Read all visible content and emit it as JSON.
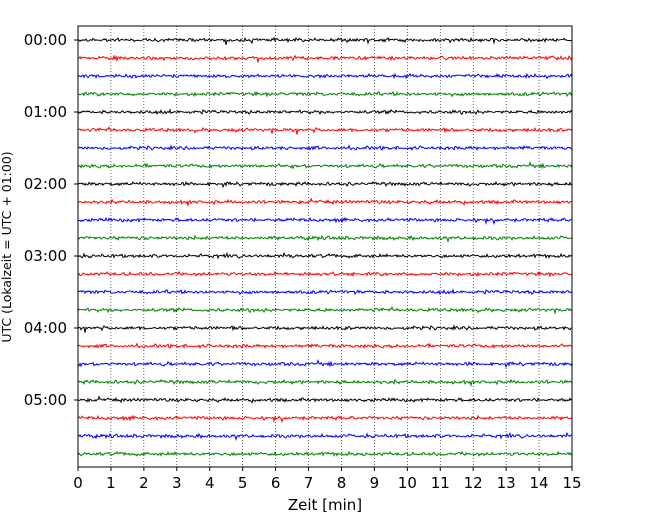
{
  "chart_data": {
    "type": "line",
    "title": "",
    "xlabel": "Zeit  [min]",
    "ylabel": "UTC (Lokalzeit = UTC + 01:00)",
    "xlim": [
      0,
      15
    ],
    "x_ticks": [
      "0",
      "1",
      "2",
      "3",
      "4",
      "5",
      "6",
      "7",
      "8",
      "9",
      "10",
      "11",
      "12",
      "13",
      "14",
      "15"
    ],
    "y_tick_labels": [
      "00:00",
      "01:00",
      "02:00",
      "03:00",
      "04:00",
      "05:00"
    ],
    "grid": "vertical dotted at each minute",
    "trace_colors": [
      "#000000",
      "#ff0000",
      "#0000ff",
      "#008000"
    ],
    "traces": [
      {
        "start": "00:00",
        "color": "#000000"
      },
      {
        "start": "00:15",
        "color": "#ff0000"
      },
      {
        "start": "00:30",
        "color": "#0000ff"
      },
      {
        "start": "00:45",
        "color": "#008000"
      },
      {
        "start": "01:00",
        "color": "#000000"
      },
      {
        "start": "01:15",
        "color": "#ff0000"
      },
      {
        "start": "01:30",
        "color": "#0000ff"
      },
      {
        "start": "01:45",
        "color": "#008000"
      },
      {
        "start": "02:00",
        "color": "#000000"
      },
      {
        "start": "02:15",
        "color": "#ff0000"
      },
      {
        "start": "02:30",
        "color": "#0000ff"
      },
      {
        "start": "02:45",
        "color": "#008000"
      },
      {
        "start": "03:00",
        "color": "#000000"
      },
      {
        "start": "03:15",
        "color": "#ff0000"
      },
      {
        "start": "03:30",
        "color": "#0000ff"
      },
      {
        "start": "03:45",
        "color": "#008000"
      },
      {
        "start": "04:00",
        "color": "#000000"
      },
      {
        "start": "04:15",
        "color": "#ff0000"
      },
      {
        "start": "04:30",
        "color": "#0000ff"
      },
      {
        "start": "04:45",
        "color": "#008000"
      },
      {
        "start": "05:00",
        "color": "#000000"
      },
      {
        "start": "05:15",
        "color": "#ff0000"
      },
      {
        "start": "05:30",
        "color": "#0000ff"
      },
      {
        "start": "05:45",
        "color": "#008000"
      }
    ]
  }
}
